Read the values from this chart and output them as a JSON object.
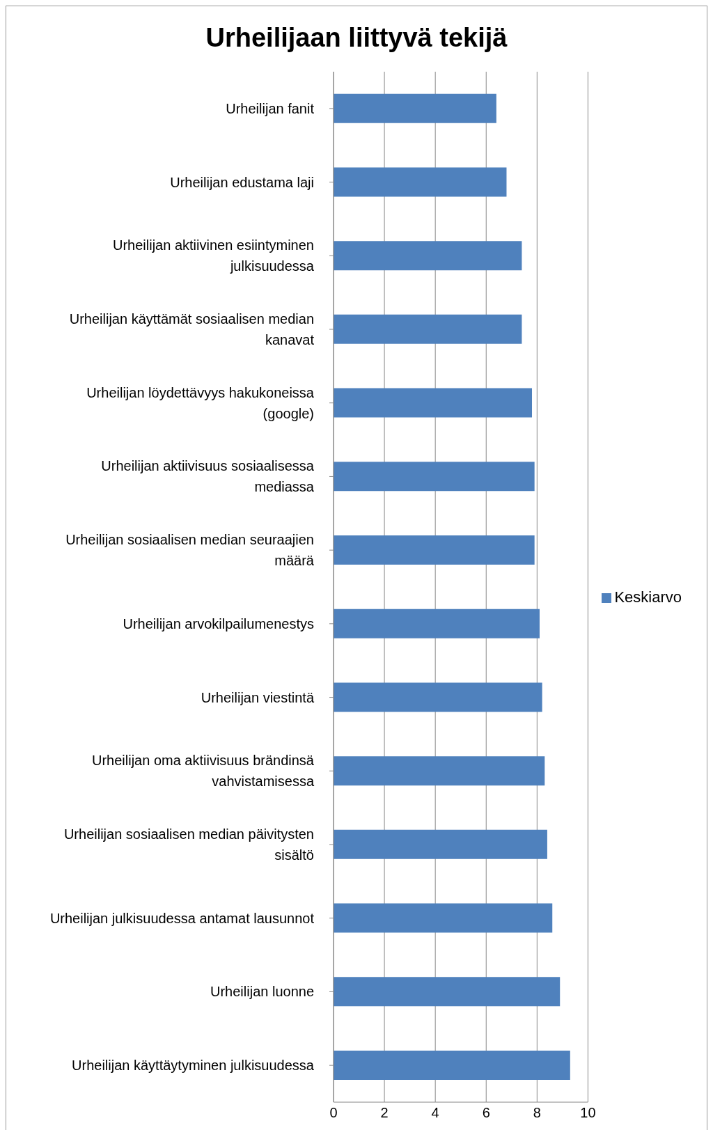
{
  "chart_data": {
    "type": "bar",
    "orientation": "horizontal",
    "title": "Urheilijaan liittyvä tekijä",
    "categories": [
      "Urheilijan fanit",
      "Urheilijan edustama laji",
      "Urheilijan aktiivinen esiintyminen julkisuudessa",
      "Urheilijan käyttämät sosiaalisen median kanavat",
      "Urheilijan löydettävyys hakukoneissa (google)",
      "Urheilijan aktiivisuus sosiaalisessa mediassa",
      "Urheilijan sosiaalisen median seuraajien määrä",
      "Urheilijan arvokilpailumenestys",
      "Urheilijan viestintä",
      "Urheilijan oma aktiivisuus brändinsä vahvistamisessa",
      "Urheilijan sosiaalisen median päivitysten sisältö",
      "Urheilijan julkisuudessa antamat lausunnot",
      "Urheilijan luonne",
      "Urheilijan käyttäytyminen julkisuudessa"
    ],
    "series": [
      {
        "name": "Keskiarvo",
        "color": "#4f81bd",
        "values": [
          6.4,
          6.8,
          7.4,
          7.4,
          7.8,
          7.9,
          7.9,
          8.1,
          8.2,
          8.3,
          8.4,
          8.6,
          8.9,
          9.3
        ]
      }
    ],
    "xlim": [
      0,
      10
    ],
    "xticks": [
      0,
      2,
      4,
      6,
      8,
      10
    ],
    "grid": "x",
    "legend": "right"
  }
}
